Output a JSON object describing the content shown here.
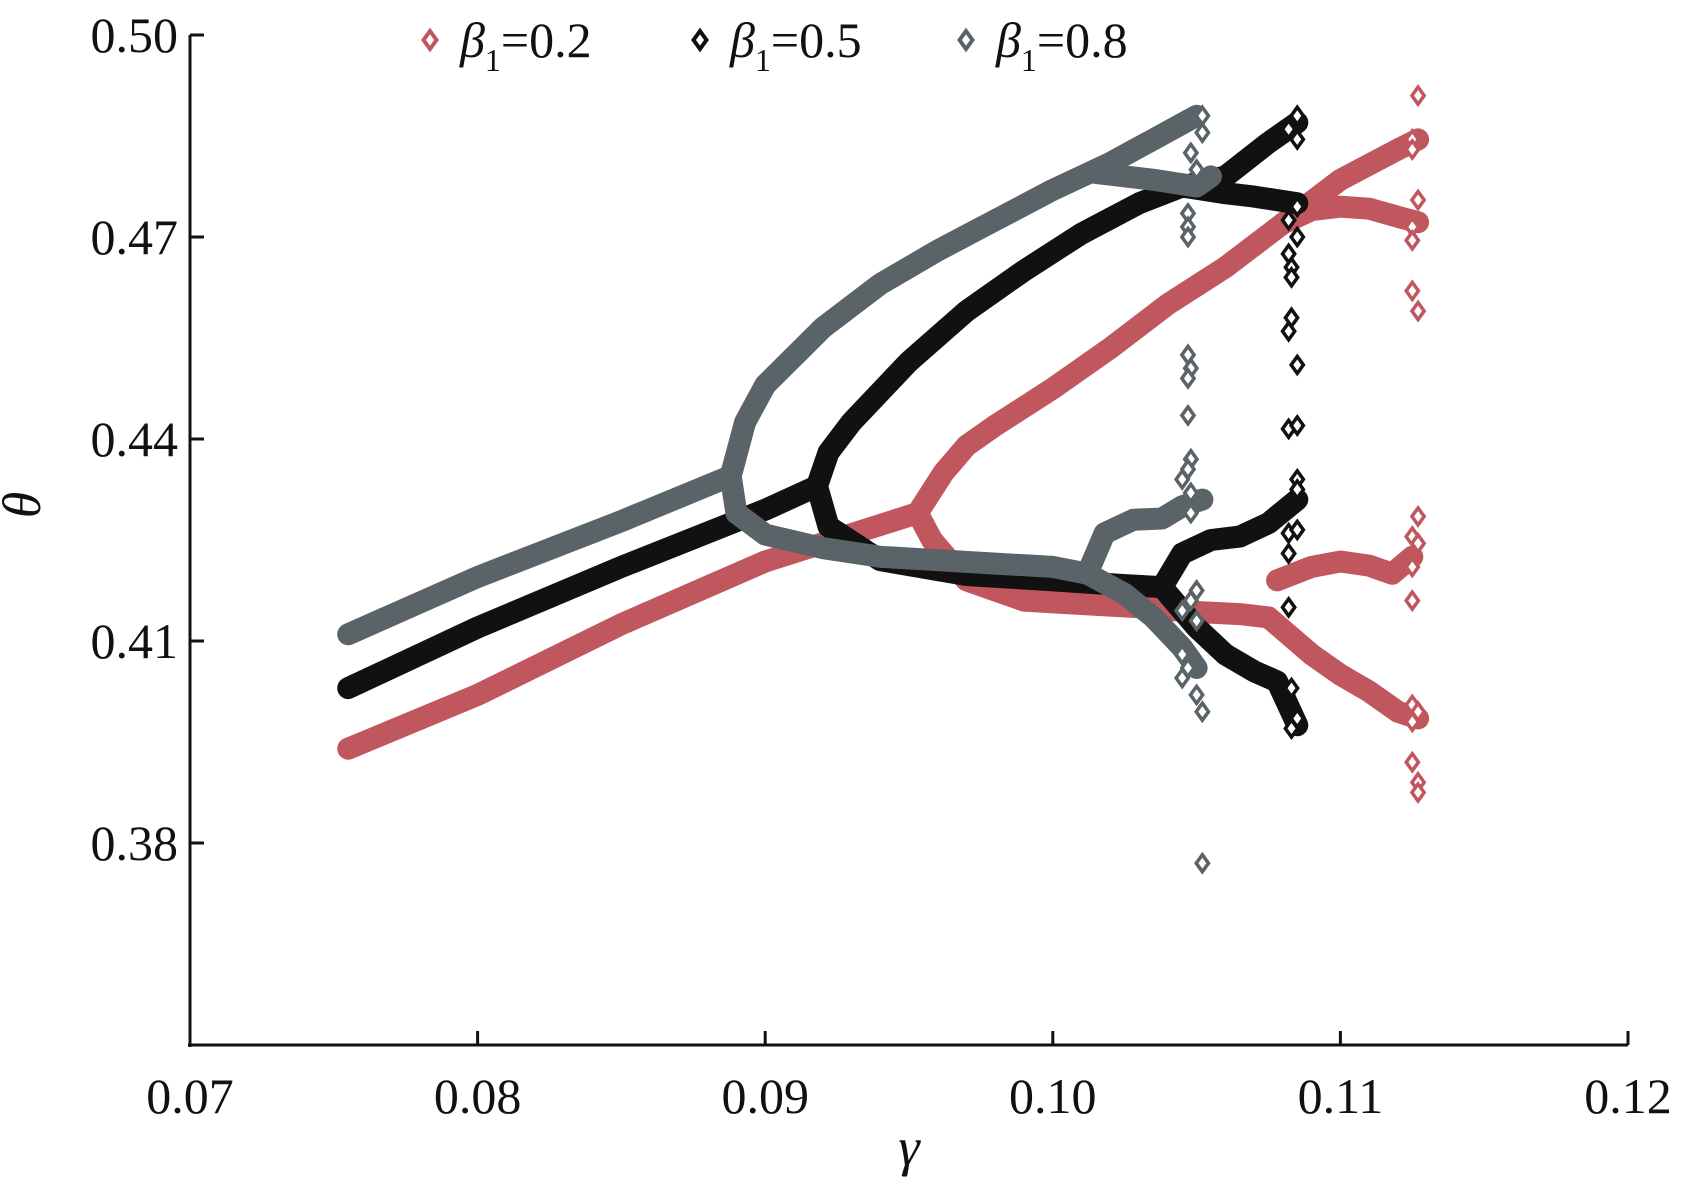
{
  "chart_data": {
    "type": "scatter",
    "title": "",
    "xlabel": "γ",
    "ylabel": "θ",
    "xlim": [
      0.07,
      0.12
    ],
    "ylim": [
      0.35,
      0.5
    ],
    "xticks": [
      0.07,
      0.08,
      0.09,
      0.1,
      0.11,
      0.12
    ],
    "xtick_labels": [
      "0.07",
      "0.08",
      "0.09",
      "0.10",
      "0.11",
      "0.12"
    ],
    "yticks": [
      0.38,
      0.41,
      0.44,
      0.47,
      0.5
    ],
    "ytick_labels": [
      "0.38",
      "0.41",
      "0.44",
      "0.47",
      "0.50"
    ],
    "grid": false,
    "legend_position": "top",
    "marker": "diamond",
    "series": [
      {
        "name": "β1=0.2",
        "legend": {
          "symbol": "β",
          "sub": "1",
          "value": "=0.2"
        },
        "color": "#c0575f",
        "branches": [
          [
            [
              0.0755,
              0.394
            ],
            [
              0.08,
              0.402
            ],
            [
              0.085,
              0.4125
            ],
            [
              0.09,
              0.4218
            ],
            [
              0.0953,
              0.429
            ]
          ],
          [
            [
              0.0953,
              0.429
            ],
            [
              0.0962,
              0.435
            ],
            [
              0.097,
              0.439
            ],
            [
              0.098,
              0.442
            ],
            [
              0.1,
              0.4475
            ],
            [
              0.102,
              0.4535
            ],
            [
              0.104,
              0.46
            ],
            [
              0.106,
              0.4655
            ],
            [
              0.108,
              0.472
            ],
            [
              0.11,
              0.4785
            ],
            [
              0.112,
              0.483
            ],
            [
              0.1127,
              0.4845
            ]
          ],
          [
            [
              0.108,
              0.472
            ],
            [
              0.109,
              0.474
            ],
            [
              0.11,
              0.4745
            ],
            [
              0.111,
              0.4742
            ],
            [
              0.112,
              0.473
            ],
            [
              0.1127,
              0.4722
            ]
          ],
          [
            [
              0.0953,
              0.429
            ],
            [
              0.0958,
              0.425
            ],
            [
              0.097,
              0.419
            ],
            [
              0.099,
              0.416
            ],
            [
              0.101,
              0.4155
            ],
            [
              0.103,
              0.415
            ],
            [
              0.105,
              0.4143
            ],
            [
              0.1065,
              0.414
            ],
            [
              0.1075,
              0.4135
            ]
          ],
          [
            [
              0.1075,
              0.4135
            ],
            [
              0.109,
              0.408
            ],
            [
              0.11,
              0.405
            ],
            [
              0.111,
              0.4025
            ],
            [
              0.112,
              0.3995
            ],
            [
              0.1127,
              0.3985
            ]
          ],
          [
            [
              0.1078,
              0.419
            ],
            [
              0.109,
              0.421
            ],
            [
              0.11,
              0.4218
            ],
            [
              0.111,
              0.4212
            ],
            [
              0.1118,
              0.42
            ],
            [
              0.1125,
              0.4225
            ]
          ]
        ],
        "markers": [
          [
            0.1127,
            0.491
          ],
          [
            0.1125,
            0.4845
          ],
          [
            0.1125,
            0.483
          ],
          [
            0.1127,
            0.4755
          ],
          [
            0.1125,
            0.4715
          ],
          [
            0.1125,
            0.4695
          ],
          [
            0.1125,
            0.462
          ],
          [
            0.1127,
            0.459
          ],
          [
            0.1127,
            0.4285
          ],
          [
            0.1125,
            0.4255
          ],
          [
            0.1127,
            0.4245
          ],
          [
            0.1125,
            0.421
          ],
          [
            0.1125,
            0.416
          ],
          [
            0.1125,
            0.4005
          ],
          [
            0.1127,
            0.3995
          ],
          [
            0.1125,
            0.398
          ],
          [
            0.1125,
            0.392
          ],
          [
            0.1127,
            0.389
          ],
          [
            0.1127,
            0.3875
          ]
        ]
      },
      {
        "name": "β1=0.5",
        "legend": {
          "symbol": "β",
          "sub": "1",
          "value": "=0.5"
        },
        "color": "#111111",
        "branches": [
          [
            [
              0.0755,
              0.403
            ],
            [
              0.08,
              0.412
            ],
            [
              0.085,
              0.421
            ],
            [
              0.09,
              0.4295
            ],
            [
              0.0918,
              0.433
            ]
          ],
          [
            [
              0.0918,
              0.433
            ],
            [
              0.0922,
              0.438
            ],
            [
              0.093,
              0.4425
            ],
            [
              0.095,
              0.4515
            ],
            [
              0.097,
              0.459
            ],
            [
              0.099,
              0.465
            ],
            [
              0.101,
              0.4705
            ],
            [
              0.103,
              0.475
            ],
            [
              0.1045,
              0.4775
            ],
            [
              0.106,
              0.479
            ],
            [
              0.1075,
              0.484
            ],
            [
              0.1085,
              0.487
            ]
          ],
          [
            [
              0.1045,
              0.4775
            ],
            [
              0.106,
              0.4765
            ],
            [
              0.107,
              0.476
            ],
            [
              0.1085,
              0.475
            ]
          ],
          [
            [
              0.0918,
              0.433
            ],
            [
              0.0922,
              0.427
            ],
            [
              0.094,
              0.422
            ],
            [
              0.097,
              0.4198
            ],
            [
              0.1,
              0.419
            ],
            [
              0.1025,
              0.4183
            ],
            [
              0.1038,
              0.418
            ]
          ],
          [
            [
              0.1038,
              0.418
            ],
            [
              0.105,
              0.412
            ],
            [
              0.106,
              0.408
            ],
            [
              0.107,
              0.4055
            ],
            [
              0.1078,
              0.404
            ],
            [
              0.1085,
              0.3975
            ]
          ],
          [
            [
              0.1038,
              0.418
            ],
            [
              0.1045,
              0.423
            ],
            [
              0.1055,
              0.425
            ],
            [
              0.1065,
              0.4255
            ],
            [
              0.1075,
              0.4275
            ],
            [
              0.1085,
              0.431
            ]
          ]
        ],
        "markers": [
          [
            0.1085,
            0.488
          ],
          [
            0.1082,
            0.486
          ],
          [
            0.1085,
            0.4845
          ],
          [
            0.1085,
            0.4745
          ],
          [
            0.1082,
            0.4725
          ],
          [
            0.1085,
            0.47
          ],
          [
            0.1082,
            0.4675
          ],
          [
            0.1083,
            0.4655
          ],
          [
            0.1083,
            0.464
          ],
          [
            0.1083,
            0.458
          ],
          [
            0.1082,
            0.456
          ],
          [
            0.1085,
            0.451
          ],
          [
            0.1082,
            0.4415
          ],
          [
            0.1085,
            0.442
          ],
          [
            0.1085,
            0.434
          ],
          [
            0.1085,
            0.4325
          ],
          [
            0.1082,
            0.426
          ],
          [
            0.1085,
            0.4265
          ],
          [
            0.1082,
            0.423
          ],
          [
            0.1082,
            0.415
          ],
          [
            0.1083,
            0.403
          ],
          [
            0.1085,
            0.3985
          ],
          [
            0.1083,
            0.397
          ]
        ]
      },
      {
        "name": "β1=0.8",
        "legend": {
          "symbol": "β",
          "sub": "1",
          "value": "=0.8"
        },
        "color": "#5a6468",
        "branches": [
          [
            [
              0.0755,
              0.411
            ],
            [
              0.08,
              0.4195
            ],
            [
              0.085,
              0.4278
            ],
            [
              0.0888,
              0.4345
            ]
          ],
          [
            [
              0.0888,
              0.4345
            ],
            [
              0.0893,
              0.4425
            ],
            [
              0.09,
              0.448
            ],
            [
              0.092,
              0.4565
            ],
            [
              0.094,
              0.463
            ],
            [
              0.096,
              0.468
            ],
            [
              0.098,
              0.4725
            ],
            [
              0.1,
              0.477
            ],
            [
              0.102,
              0.481
            ],
            [
              0.1035,
              0.4845
            ],
            [
              0.105,
              0.488
            ]
          ],
          [
            [
              0.1015,
              0.4795
            ],
            [
              0.1035,
              0.4785
            ],
            [
              0.105,
              0.4775
            ],
            [
              0.1055,
              0.479
            ]
          ],
          [
            [
              0.0888,
              0.4345
            ],
            [
              0.089,
              0.429
            ],
            [
              0.09,
              0.4258
            ],
            [
              0.092,
              0.4238
            ],
            [
              0.094,
              0.4225
            ],
            [
              0.096,
              0.422
            ],
            [
              0.098,
              0.4215
            ],
            [
              0.1,
              0.421
            ],
            [
              0.1012,
              0.42
            ]
          ],
          [
            [
              0.1012,
              0.42
            ],
            [
              0.1025,
              0.417
            ],
            [
              0.1035,
              0.4135
            ],
            [
              0.1045,
              0.409
            ],
            [
              0.105,
              0.406
            ]
          ],
          [
            [
              0.1012,
              0.42
            ],
            [
              0.1018,
              0.426
            ],
            [
              0.1028,
              0.428
            ],
            [
              0.1038,
              0.4282
            ],
            [
              0.1045,
              0.43
            ],
            [
              0.1052,
              0.431
            ]
          ]
        ],
        "markers": [
          [
            0.1052,
            0.488
          ],
          [
            0.1052,
            0.4855
          ],
          [
            0.1048,
            0.4825
          ],
          [
            0.105,
            0.48
          ],
          [
            0.1047,
            0.4735
          ],
          [
            0.1047,
            0.4715
          ],
          [
            0.1047,
            0.47
          ],
          [
            0.1047,
            0.4525
          ],
          [
            0.1048,
            0.4505
          ],
          [
            0.1047,
            0.449
          ],
          [
            0.1047,
            0.4435
          ],
          [
            0.1048,
            0.437
          ],
          [
            0.1047,
            0.4355
          ],
          [
            0.1045,
            0.434
          ],
          [
            0.1048,
            0.432
          ],
          [
            0.1048,
            0.429
          ],
          [
            0.105,
            0.4175
          ],
          [
            0.1048,
            0.416
          ],
          [
            0.1045,
            0.4145
          ],
          [
            0.105,
            0.413
          ],
          [
            0.1045,
            0.408
          ],
          [
            0.1047,
            0.406
          ],
          [
            0.1045,
            0.4045
          ],
          [
            0.105,
            0.402
          ],
          [
            0.1052,
            0.3995
          ],
          [
            0.1052,
            0.377
          ]
        ]
      }
    ]
  }
}
